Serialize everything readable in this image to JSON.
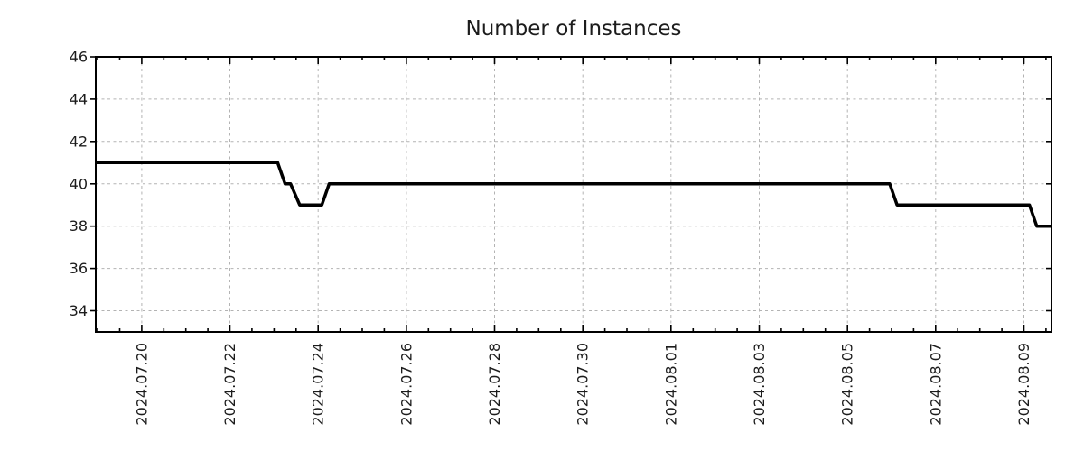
{
  "chart_data": {
    "type": "line",
    "subtype": "step-time-series",
    "title": "Number of Instances",
    "xlabel": "",
    "ylabel": "",
    "legend": "none",
    "grid": true,
    "line_color": "#000000",
    "grid_color": "#b3b3b3",
    "axis_color": "#000000",
    "text_color": "#1c1c1c",
    "background": "#ffffff",
    "ylim": [
      33,
      46
    ],
    "y_ticks": [
      34,
      36,
      38,
      40,
      42,
      44,
      46
    ],
    "xlim": [
      "2024-07-18 23:00",
      "2024-08-09 15:00"
    ],
    "x_minor_interval_hours": 12,
    "x_major_ticks": [
      {
        "t": "2024-07-20 00:00",
        "label": "2024.07.20"
      },
      {
        "t": "2024-07-22 00:00",
        "label": "2024.07.22"
      },
      {
        "t": "2024-07-24 00:00",
        "label": "2024.07.24"
      },
      {
        "t": "2024-07-26 00:00",
        "label": "2024.07.26"
      },
      {
        "t": "2024-07-28 00:00",
        "label": "2024.07.28"
      },
      {
        "t": "2024-07-30 00:00",
        "label": "2024.07.30"
      },
      {
        "t": "2024-08-01 00:00",
        "label": "2024.08.01"
      },
      {
        "t": "2024-08-03 00:00",
        "label": "2024.08.03"
      },
      {
        "t": "2024-08-05 00:00",
        "label": "2024.08.05"
      },
      {
        "t": "2024-08-07 00:00",
        "label": "2024.08.07"
      },
      {
        "t": "2024-08-09 00:00",
        "label": "2024.08.09"
      }
    ],
    "series": [
      {
        "name": "instances",
        "color": "#000000",
        "width": 3.5,
        "points": [
          {
            "t": "2024-07-18 23:00",
            "v": 41
          },
          {
            "t": "2024-07-23 02:00",
            "v": 41
          },
          {
            "t": "2024-07-23 06:00",
            "v": 40
          },
          {
            "t": "2024-07-23 09:00",
            "v": 40
          },
          {
            "t": "2024-07-23 14:00",
            "v": 39
          },
          {
            "t": "2024-07-24 02:00",
            "v": 39
          },
          {
            "t": "2024-07-24 06:00",
            "v": 40
          },
          {
            "t": "2024-08-05 23:00",
            "v": 40
          },
          {
            "t": "2024-08-06 03:00",
            "v": 39
          },
          {
            "t": "2024-08-09 03:00",
            "v": 39
          },
          {
            "t": "2024-08-09 07:00",
            "v": 38
          },
          {
            "t": "2024-08-09 15:00",
            "v": 38
          }
        ]
      }
    ]
  }
}
